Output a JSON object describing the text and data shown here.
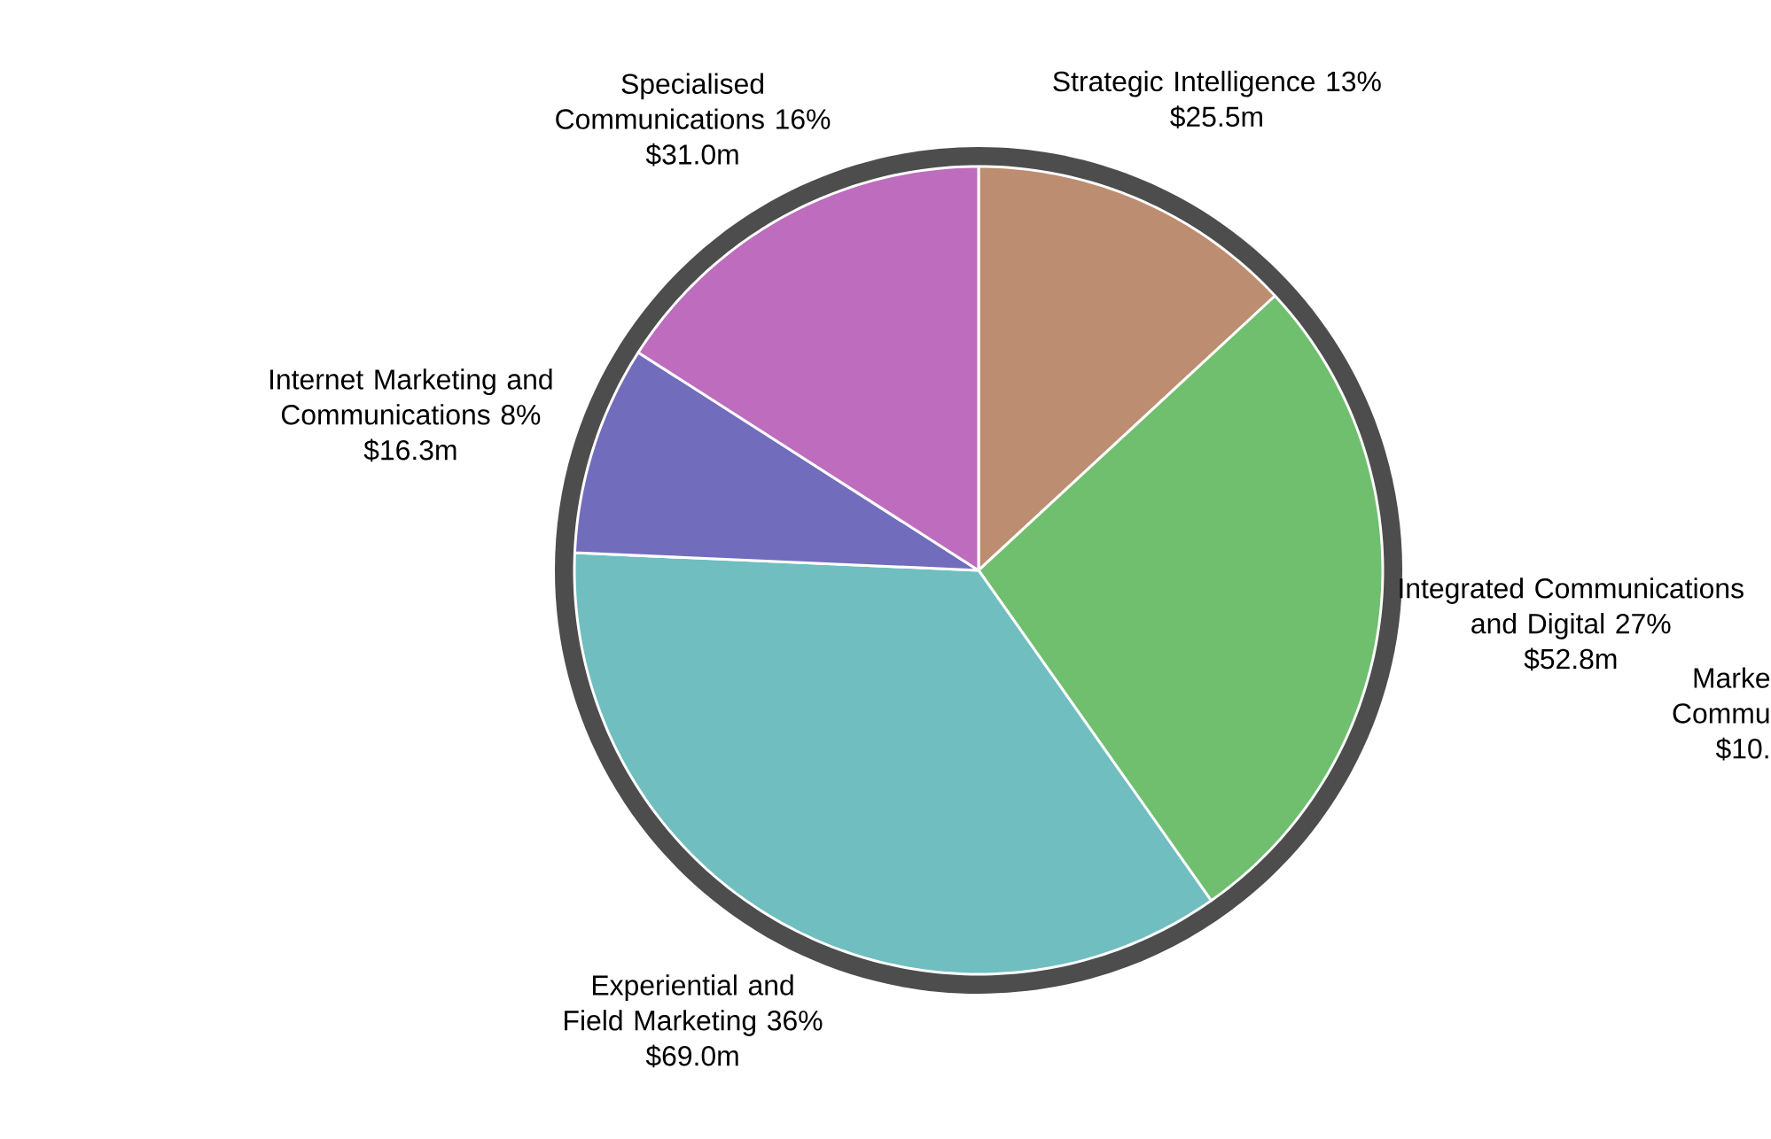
{
  "chart_data": {
    "type": "pie",
    "categories": [
      "Strategic Intelligence 13%",
      "Integrated Communications and Digital 27%",
      "Experiential and Field Marketing 36%",
      "Internet Marketing and Communications 8%",
      "Specialised Communications 16%"
    ],
    "values": [
      25.5,
      52.8,
      69.0,
      16.3,
      31.0
    ],
    "value_labels": [
      "$25.5m",
      "$52.8m",
      "$69.0m",
      "$16.3m",
      "$31.0m"
    ],
    "colors": [
      "#bc8d70",
      "#6fbf6e",
      "#70bebf",
      "#716cbb",
      "#be6cbe"
    ],
    "annotations": [
      "Marke",
      "Commu",
      "$10."
    ]
  }
}
